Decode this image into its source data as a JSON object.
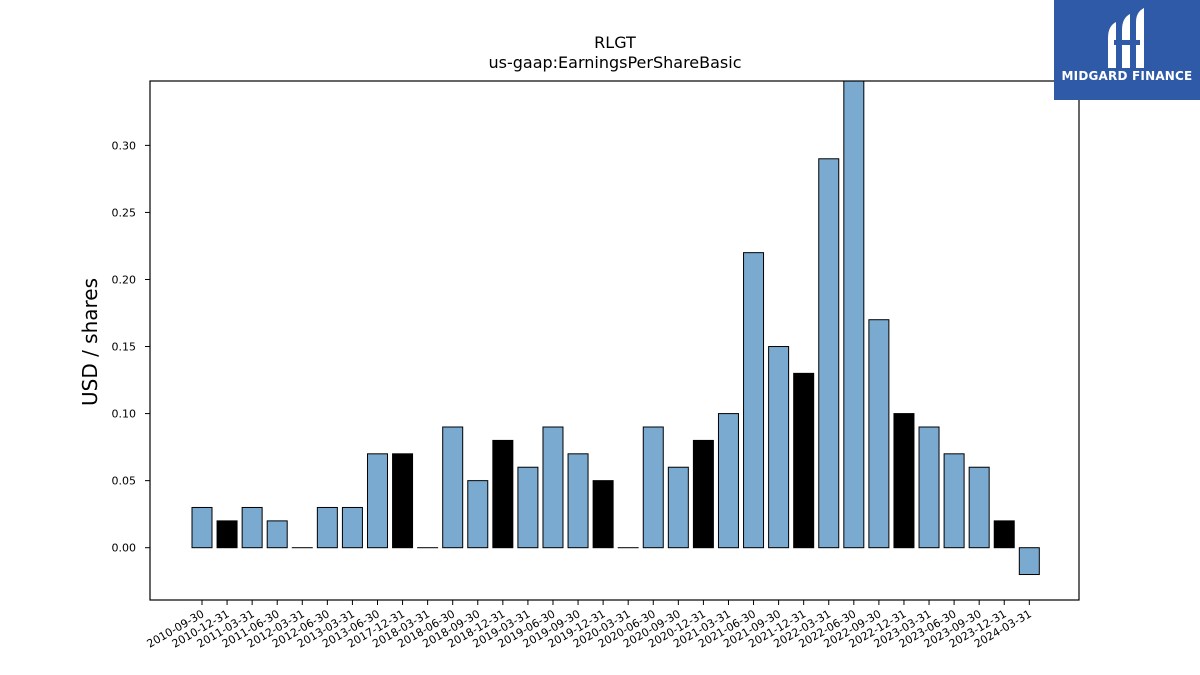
{
  "chart_data": {
    "type": "bar",
    "title": "RLGT",
    "subtitle": "us-gaap:EarningsPerShareBasic",
    "xlabel": "",
    "ylabel": "USD / shares",
    "ylim": [
      -0.039,
      0.348
    ],
    "yticks": [
      0.0,
      0.05,
      0.1,
      0.15,
      0.2,
      0.25,
      0.3
    ],
    "ytick_labels": [
      "0.00",
      "0.05",
      "0.10",
      "0.15",
      "0.20",
      "0.25",
      "0.30"
    ],
    "grid": false,
    "colors": {
      "quarter": "#7aaad0",
      "fiscal_year": "#000000",
      "edge": "#000000"
    },
    "categories": [
      "2010-09-30",
      "2010-12-31",
      "2011-03-31",
      "2011-06-30",
      "2012-03-31",
      "2012-06-30",
      "2013-03-31",
      "2013-06-30",
      "2017-12-31",
      "2018-03-31",
      "2018-06-30",
      "2018-09-30",
      "2018-12-31",
      "2019-03-31",
      "2019-06-30",
      "2019-09-30",
      "2019-12-31",
      "2020-03-31",
      "2020-06-30",
      "2020-09-30",
      "2020-12-31",
      "2021-03-31",
      "2021-06-30",
      "2021-09-30",
      "2021-12-31",
      "2022-03-31",
      "2022-06-30",
      "2022-09-30",
      "2022-12-31",
      "2023-03-31",
      "2023-06-30",
      "2023-09-30",
      "2023-12-31",
      "2024-03-31"
    ],
    "values": [
      0.03,
      0.02,
      0.03,
      0.02,
      0.0,
      0.03,
      0.03,
      0.07,
      0.07,
      0.0,
      0.09,
      0.05,
      0.08,
      0.06,
      0.09,
      0.07,
      0.05,
      0.0,
      0.09,
      0.06,
      0.08,
      0.1,
      0.22,
      0.15,
      0.13,
      0.29,
      0.35,
      0.17,
      0.1,
      0.09,
      0.07,
      0.06,
      0.02,
      -0.02
    ],
    "highlighted": [
      false,
      true,
      false,
      false,
      false,
      false,
      false,
      false,
      true,
      false,
      false,
      false,
      true,
      false,
      false,
      false,
      true,
      false,
      false,
      false,
      true,
      false,
      false,
      false,
      true,
      false,
      false,
      false,
      true,
      false,
      false,
      false,
      true,
      false
    ]
  },
  "logo": {
    "text": "MIDGARD FINANCE",
    "icon": "midgard-logo-icon"
  }
}
